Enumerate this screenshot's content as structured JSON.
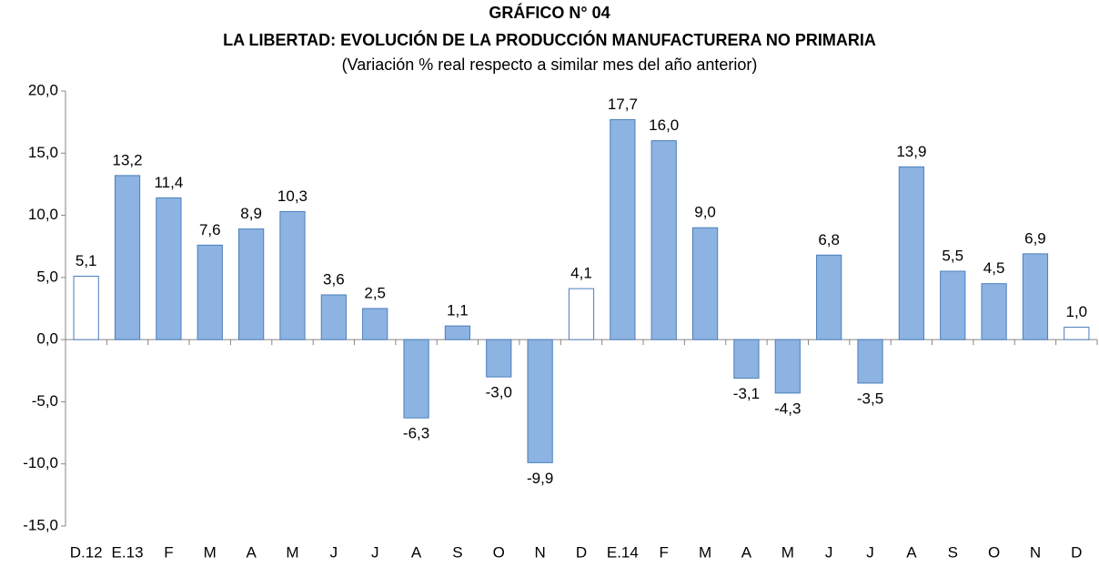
{
  "chart_data": {
    "type": "bar",
    "title": "GRÁFICO N° 04",
    "subtitle": "LA LIBERTAD: EVOLUCIÓN DE LA PRODUCCIÓN MANUFACTURERA NO PRIMARIA",
    "caption": "(Variación % real respecto a similar mes del año anterior)",
    "categories": [
      "D.12",
      "E.13",
      "F",
      "M",
      "A",
      "M",
      "J",
      "J",
      "A",
      "S",
      "O",
      "N",
      "D",
      "E.14",
      "F",
      "M",
      "A",
      "M",
      "J",
      "J",
      "A",
      "S",
      "O",
      "N",
      "D"
    ],
    "values": [
      5.1,
      13.2,
      11.4,
      7.6,
      8.9,
      10.3,
      3.6,
      2.5,
      -6.3,
      1.1,
      -3.0,
      -9.9,
      4.1,
      17.7,
      16.0,
      9.0,
      -3.1,
      -4.3,
      6.8,
      -3.5,
      13.9,
      5.5,
      4.5,
      6.9,
      1.0
    ],
    "value_labels": [
      "5,1",
      "13,2",
      "11,4",
      "7,6",
      "8,9",
      "10,3",
      "3,6",
      "2,5",
      "-6,3",
      "1,1",
      "-3,0",
      "-9,9",
      "4,1",
      "17,7",
      "16,0",
      "9,0",
      "-3,1",
      "-4,3",
      "6,8",
      "-3,5",
      "13,9",
      "5,5",
      "4,5",
      "6,9",
      "1,0"
    ],
    "colors": [
      "#ffffff",
      "#8db3e2",
      "#8db3e2",
      "#8db3e2",
      "#8db3e2",
      "#8db3e2",
      "#8db3e2",
      "#8db3e2",
      "#8db3e2",
      "#8db3e2",
      "#8db3e2",
      "#8db3e2",
      "#ffffff",
      "#8db3e2",
      "#8db3e2",
      "#8db3e2",
      "#8db3e2",
      "#8db3e2",
      "#8db3e2",
      "#8db3e2",
      "#8db3e2",
      "#8db3e2",
      "#8db3e2",
      "#8db3e2",
      "#ffffff"
    ],
    "ylim": [
      -15,
      20
    ],
    "yticks": [
      {
        "value": -15,
        "label": "-15,0"
      },
      {
        "value": -10,
        "label": "-10,0"
      },
      {
        "value": -5,
        "label": "-5,0"
      },
      {
        "value": 0,
        "label": "0,0"
      },
      {
        "value": 5,
        "label": "5,0"
      },
      {
        "value": 10,
        "label": "10,0"
      },
      {
        "value": 15,
        "label": "15,0"
      },
      {
        "value": 20,
        "label": "20,0"
      }
    ],
    "grid": false
  }
}
